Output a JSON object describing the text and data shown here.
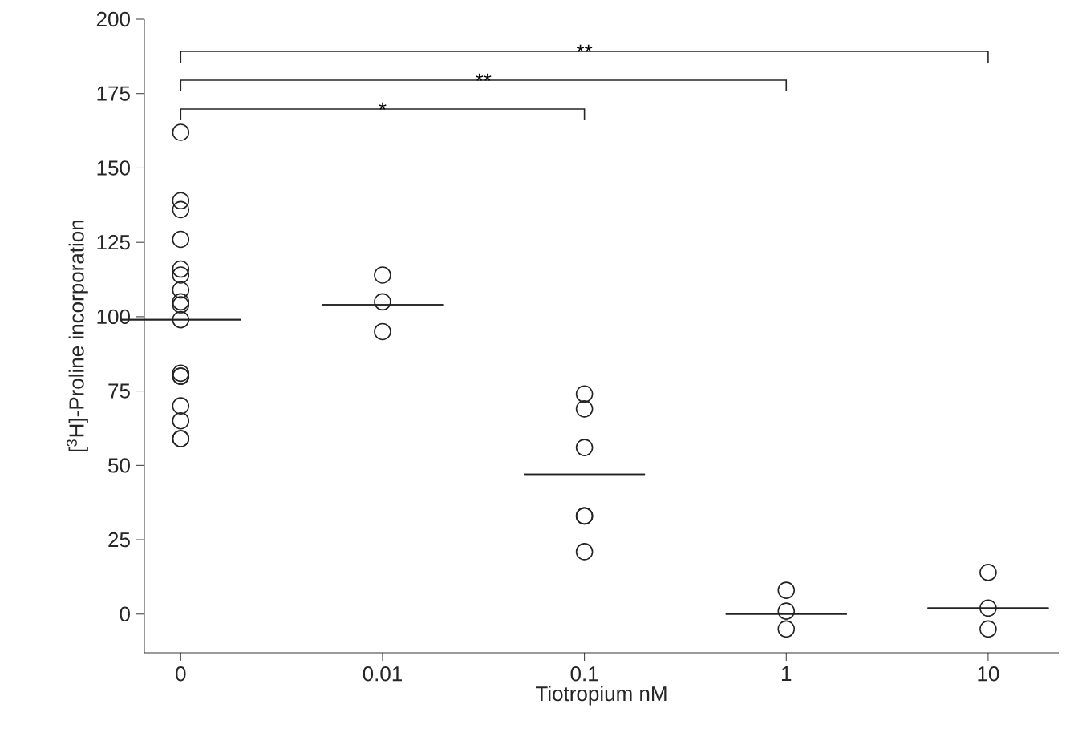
{
  "chart_data": {
    "type": "scatter",
    "xlabel": "Tiotropium nM",
    "ylabel": "[$^{3}$H]-Proline incorporation",
    "categories": [
      "0",
      "0.01",
      "0.1",
      "1",
      "10"
    ],
    "ylim": [
      -13,
      200
    ],
    "yticks": [
      0,
      25,
      50,
      75,
      100,
      125,
      150,
      175,
      200
    ],
    "series": [
      {
        "marker": "circle",
        "color": "#222222",
        "x": [
          "0",
          "0",
          "0",
          "0",
          "0",
          "0",
          "0",
          "0",
          "0",
          "0",
          "0",
          "0",
          "0",
          "0",
          "0",
          "0",
          "0",
          "0.01",
          "0.01",
          "0.01",
          "0.1",
          "0.1",
          "0.1",
          "0.1",
          "0.1",
          "0.1",
          "1",
          "1",
          "1",
          "10",
          "10",
          "10"
        ],
        "values": [
          162,
          136,
          139,
          126,
          114,
          116,
          109,
          105,
          104,
          99,
          80,
          80,
          81,
          70,
          65,
          59,
          59,
          114,
          105,
          95,
          74,
          69,
          56,
          33,
          33,
          21,
          8,
          1,
          -5,
          14,
          2,
          -5
        ]
      },
      {
        "type": "box",
        "color": "#222222",
        "boxes": [
          {
            "low": 99,
            "q1": 99,
            "median": 99,
            "q3": 99,
            "high": 99
          },
          {
            "low": 104,
            "q1": 104,
            "median": 104,
            "q3": 104,
            "high": 104
          },
          {
            "low": 47,
            "q1": 47,
            "median": 47,
            "q3": 47,
            "high": 47
          },
          {
            "low": 0,
            "q1": 0,
            "median": 0,
            "q3": 0,
            "high": 0
          },
          {
            "low": 2,
            "q1": 2,
            "median": 2,
            "q3": 2,
            "high": 2
          }
        ]
      }
    ],
    "annotations": [
      "*",
      "**",
      "**"
    ]
  }
}
